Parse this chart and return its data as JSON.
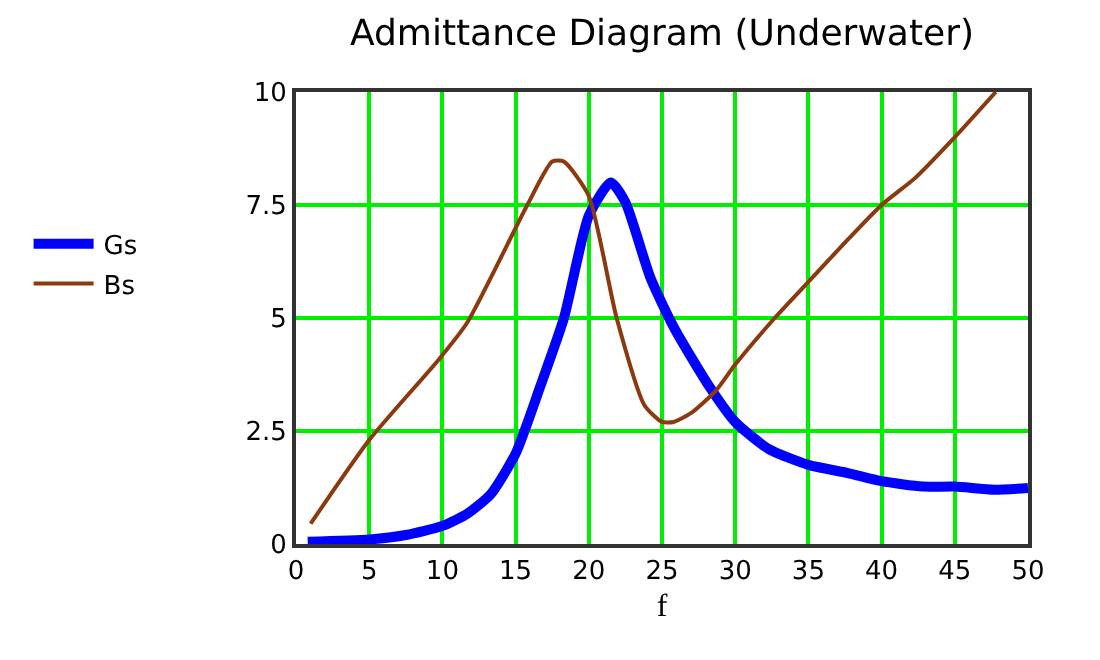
{
  "chart_data": {
    "type": "line",
    "title": "Admittance Diagram (Underwater)",
    "xlabel": "f",
    "xlim": [
      0,
      50
    ],
    "xticks": [
      0,
      5,
      10,
      15,
      20,
      25,
      30,
      35,
      40,
      45,
      50
    ],
    "ylim": [
      0,
      10
    ],
    "yticks": [
      0,
      2.5,
      5,
      7.5,
      10
    ],
    "grid": true,
    "legend": "left",
    "line_style": "solid",
    "series": [
      {
        "name": "Gs",
        "color": "#0000ff",
        "x": [
          0.8,
          5,
          7.5,
          10,
          11.7,
          13.3,
          15,
          16.7,
          18.3,
          20,
          21.5,
          22.5,
          24.2,
          25.8,
          28.2,
          30,
          32.3,
          35,
          37.7,
          40,
          42.8,
          45,
          47.7,
          50
        ],
        "values": [
          0.05,
          0.1,
          0.2,
          0.4,
          0.67,
          1.1,
          2.0,
          3.5,
          5.0,
          7.26,
          8.0,
          7.56,
          5.9,
          4.8,
          3.5,
          2.7,
          2.1,
          1.75,
          1.57,
          1.39,
          1.27,
          1.27,
          1.2,
          1.24
        ]
      },
      {
        "name": "Bs",
        "color": "#8b3a0f",
        "x": [
          1,
          5,
          9.8,
          11.7,
          15.8,
          17.5,
          18.3,
          20,
          21.9,
          23.8,
          25,
          25.8,
          27,
          28.7,
          30,
          32.7,
          35,
          37.3,
          40,
          42.3,
          45,
          47.8
        ],
        "values": [
          0.45,
          2.3,
          4.1,
          4.9,
          7.5,
          8.46,
          8.46,
          7.7,
          5.0,
          3.07,
          2.7,
          2.7,
          2.9,
          3.4,
          3.97,
          5.0,
          5.8,
          6.6,
          7.5,
          8.1,
          9.0,
          10
        ]
      }
    ]
  }
}
